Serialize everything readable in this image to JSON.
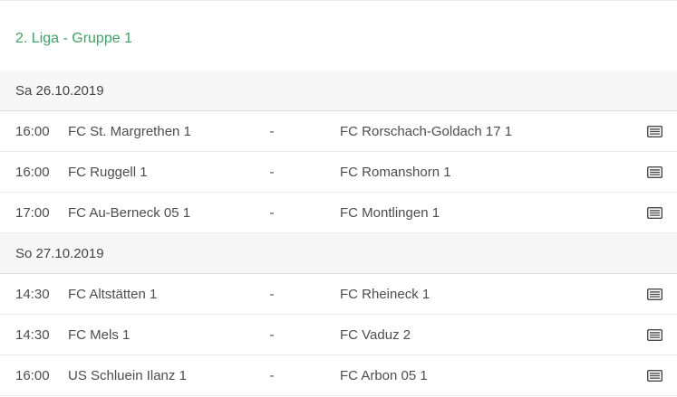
{
  "page": {
    "title": "2. Liga - Gruppe 1"
  },
  "match_separator": "-",
  "icons": {
    "match_report": "lined-card-report-icon"
  },
  "colors": {
    "accent_green": "#3fa266",
    "date_band_bg": "#f7f7f7",
    "row_text": "#4d4d4d",
    "row_border": "#e9e9e9",
    "date_band_border": "#dcdcdc",
    "icon": "#4a4a4a"
  },
  "sections": [
    {
      "date": "Sa 26.10.2019",
      "matches": [
        {
          "time": "16:00",
          "home": "FC St. Margrethen 1",
          "away": "FC Rorschach-Goldach 17 1"
        },
        {
          "time": "16:00",
          "home": "FC Ruggell 1",
          "away": "FC Romanshorn 1"
        },
        {
          "time": "17:00",
          "home": "FC Au-Berneck 05 1",
          "away": "FC Montlingen 1"
        }
      ]
    },
    {
      "date": "So 27.10.2019",
      "matches": [
        {
          "time": "14:30",
          "home": "FC Altstätten 1",
          "away": "FC Rheineck 1"
        },
        {
          "time": "14:30",
          "home": "FC Mels 1",
          "away": "FC Vaduz 2"
        },
        {
          "time": "16:00",
          "home": "US Schluein Ilanz 1",
          "away": "FC Arbon 05 1"
        }
      ]
    }
  ]
}
